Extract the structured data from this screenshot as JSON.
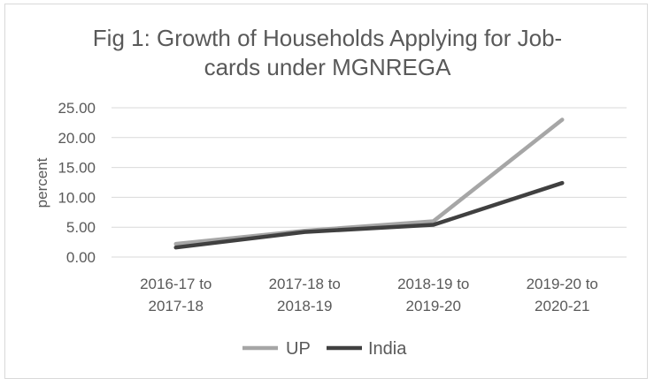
{
  "chart_data": {
    "type": "line",
    "title_lines": [
      "Fig 1: Growth of Households Applying for Job-",
      "cards under MGNREGA"
    ],
    "ylabel": "percent",
    "xlabel": "",
    "categories": [
      [
        "2016-17 to",
        "2017-18"
      ],
      [
        "2017-18 to",
        "2018-19"
      ],
      [
        "2018-19 to",
        "2019-20"
      ],
      [
        "2019-20 to",
        "2020-21"
      ]
    ],
    "ylim": [
      0,
      25
    ],
    "yticks": [
      0,
      5,
      10,
      15,
      20,
      25
    ],
    "ytick_labels": [
      "0.00",
      "5.00",
      "10.00",
      "15.00",
      "20.00",
      "25.00"
    ],
    "grid": true,
    "legend_position": "bottom",
    "series": [
      {
        "name": "UP",
        "values": [
          2.2,
          4.4,
          6.0,
          23.0
        ],
        "color": "#a6a6a6"
      },
      {
        "name": "India",
        "values": [
          1.6,
          4.2,
          5.4,
          12.4
        ],
        "color": "#404040"
      }
    ]
  }
}
